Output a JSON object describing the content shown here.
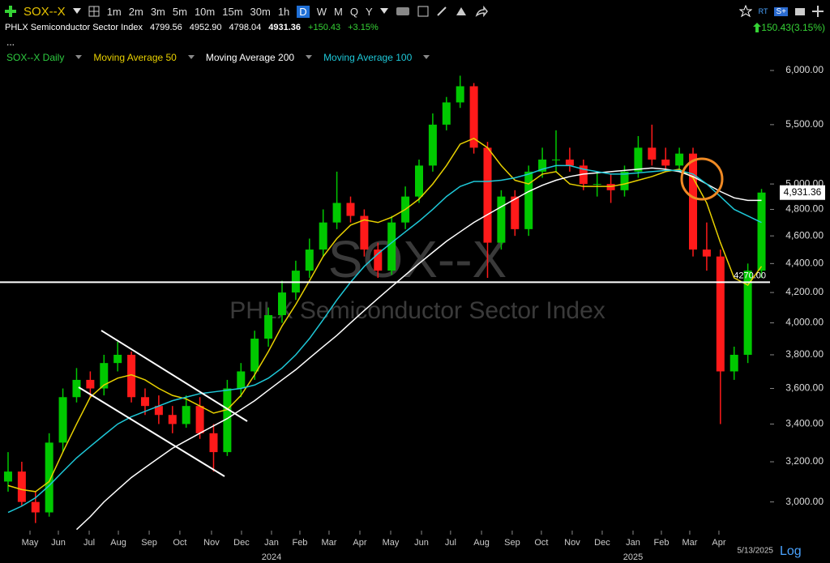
{
  "toolbar": {
    "symbol": "SOX--X",
    "timeframes": [
      "1m",
      "2m",
      "3m",
      "5m",
      "10m",
      "15m",
      "30m",
      "1h",
      "D",
      "W",
      "M",
      "Q",
      "Y"
    ],
    "active": "D",
    "rt": "RT",
    "sp": "S+"
  },
  "quote": {
    "name": "PHLX Semiconductor Sector Index",
    "open": "4799.56",
    "high": "4952.90",
    "low": "4798.04",
    "last": "4931.36",
    "change": "+150.43",
    "change_pct": "+3.15%",
    "change_summary": "150.43(3.15%)",
    "more": "..."
  },
  "chart_data": {
    "type": "candlestick",
    "title": "SOX--X",
    "subtitle": "PHLX Semiconductor Sector Index",
    "price_series_name": "SOX--X Daily",
    "up_color": "#00c800",
    "down_color": "#ff1a1a",
    "categories": [
      null,
      null,
      null,
      null,
      null,
      null,
      null,
      null,
      null,
      null,
      null,
      null,
      null,
      null,
      null,
      null,
      null,
      null,
      null,
      null,
      null,
      null,
      null,
      null,
      null,
      null,
      null,
      null,
      null,
      null,
      null,
      null,
      null,
      null,
      null,
      null,
      null,
      null,
      null,
      null,
      null,
      null,
      null,
      null,
      null,
      null,
      null,
      null,
      null,
      null,
      null,
      null,
      null,
      null,
      null,
      null
    ],
    "open": [
      3100,
      3150,
      3000,
      2950,
      3300,
      3550,
      3650,
      3600,
      3750,
      3800,
      3550,
      3500,
      3450,
      3400,
      3500,
      3350,
      3250,
      3600,
      3700,
      3900,
      4050,
      4200,
      4350,
      4500,
      4700,
      4850,
      4750,
      4500,
      4350,
      4700,
      4900,
      5150,
      5500,
      5700,
      5850,
      5300,
      4550,
      4900,
      4650,
      5100,
      5200,
      5200,
      5150,
      5000,
      5000,
      4950,
      5100,
      5300,
      5200,
      5150,
      5250,
      4500,
      4450,
      3700,
      3800,
      4350
    ],
    "high": [
      3250,
      3200,
      3050,
      3350,
      3600,
      3720,
      3700,
      3800,
      3880,
      3820,
      3600,
      3560,
      3500,
      3560,
      3550,
      3400,
      3650,
      3750,
      3950,
      4100,
      4280,
      4420,
      4580,
      4800,
      5100,
      4900,
      4800,
      4550,
      4750,
      4980,
      5200,
      5600,
      5750,
      5950,
      5880,
      5350,
      4950,
      4950,
      5150,
      5300,
      5450,
      5300,
      5200,
      5100,
      5080,
      5150,
      5400,
      5500,
      5300,
      5300,
      5300,
      4700,
      4500,
      3850,
      4400,
      4960
    ],
    "low": [
      3050,
      2980,
      2900,
      2930,
      3250,
      3520,
      3550,
      3560,
      3700,
      3520,
      3450,
      3400,
      3350,
      3380,
      3320,
      3150,
      3230,
      3550,
      3650,
      3850,
      4000,
      4150,
      4300,
      4450,
      4650,
      4700,
      4450,
      4300,
      4320,
      4650,
      4850,
      5100,
      5450,
      5650,
      5250,
      4300,
      4500,
      4600,
      4600,
      5050,
      5100,
      5100,
      4950,
      4900,
      4850,
      4900,
      5050,
      5150,
      5100,
      5100,
      4450,
      4350,
      3400,
      3650,
      3750,
      4300
    ],
    "close": [
      3150,
      3000,
      2950,
      3300,
      3550,
      3650,
      3600,
      3750,
      3800,
      3550,
      3500,
      3450,
      3400,
      3500,
      3350,
      3250,
      3600,
      3700,
      3900,
      4050,
      4200,
      4350,
      4500,
      4700,
      4850,
      4750,
      4500,
      4350,
      4700,
      4900,
      5150,
      5500,
      5700,
      5850,
      5300,
      4550,
      4900,
      4650,
      5100,
      5200,
      5200,
      5150,
      5000,
      5000,
      4950,
      5100,
      5300,
      5200,
      5150,
      5250,
      4500,
      4450,
      3700,
      3800,
      4350,
      4931.36
    ],
    "series": [
      {
        "name": "Moving Average 50",
        "color": "#e8d000",
        "values": [
          3080,
          3060,
          3050,
          3100,
          3250,
          3400,
          3550,
          3620,
          3660,
          3680,
          3650,
          3600,
          3560,
          3540,
          3500,
          3460,
          3480,
          3560,
          3680,
          3820,
          3980,
          4120,
          4280,
          4450,
          4580,
          4680,
          4720,
          4700,
          4740,
          4800,
          4880,
          5000,
          5150,
          5330,
          5380,
          5300,
          5150,
          5030,
          5000,
          5080,
          5100,
          5000,
          4980,
          4980,
          4980,
          5000,
          5030,
          5060,
          5100,
          5120,
          5050,
          4850,
          4550,
          4300,
          4250,
          4380
        ]
      },
      {
        "name": "Moving Average 200",
        "color": "#ffffff",
        "values": [
          null,
          null,
          null,
          null,
          null,
          2870,
          2930,
          3000,
          3060,
          3120,
          3170,
          3220,
          3270,
          3310,
          3350,
          3390,
          3430,
          3480,
          3530,
          3590,
          3650,
          3710,
          3780,
          3850,
          3920,
          4000,
          4080,
          4160,
          4240,
          4320,
          4400,
          4480,
          4560,
          4630,
          4700,
          4760,
          4820,
          4880,
          4940,
          4990,
          5030,
          5060,
          5080,
          5090,
          5100,
          5110,
          5120,
          5130,
          5120,
          5100,
          5060,
          5000,
          4940,
          4890,
          4870,
          4870
        ]
      },
      {
        "name": "Moving Average 100",
        "color": "#1ec8d8",
        "values": [
          2950,
          2980,
          3020,
          3080,
          3150,
          3220,
          3280,
          3340,
          3400,
          3440,
          3470,
          3500,
          3530,
          3550,
          3570,
          3580,
          3590,
          3600,
          3620,
          3660,
          3720,
          3800,
          3900,
          4020,
          4150,
          4270,
          4380,
          4470,
          4550,
          4630,
          4710,
          4800,
          4900,
          4980,
          5020,
          5020,
          5030,
          5050,
          5080,
          5120,
          5150,
          5150,
          5120,
          5100,
          5080,
          5080,
          5090,
          5100,
          5110,
          5110,
          5080,
          5000,
          4900,
          4800,
          4750,
          4700
        ]
      }
    ],
    "log_scale": true,
    "ylim": [
      2865,
      6055
    ],
    "yticks": [
      {
        "value": 3000,
        "label": "3,000.00"
      },
      {
        "value": 3200,
        "label": "3,200.00"
      },
      {
        "value": 3400,
        "label": "3,400.00"
      },
      {
        "value": 3600,
        "label": "3,600.00"
      },
      {
        "value": 3800,
        "label": "3,800.00"
      },
      {
        "value": 4000,
        "label": "4,000.00"
      },
      {
        "value": 4200,
        "label": "4,200.00"
      },
      {
        "value": 4400,
        "label": "4,400.00"
      },
      {
        "value": 4600,
        "label": "4,600.00"
      },
      {
        "value": 4800,
        "label": "4,800.00"
      },
      {
        "value": 5000,
        "label": "5,000.00"
      },
      {
        "value": 5500,
        "label": "5,500.00"
      },
      {
        "value": 6000,
        "label": "6,000.00"
      }
    ],
    "xlim": [
      -0.59,
      55.62
    ],
    "xticks": [
      {
        "value": 1.6,
        "label": "May"
      },
      {
        "value": 3.67,
        "label": "Jun"
      },
      {
        "value": 5.92,
        "label": "Jul"
      },
      {
        "value": 8.05,
        "label": "Aug"
      },
      {
        "value": 10.3,
        "label": "Sep"
      },
      {
        "value": 12.54,
        "label": "Oct"
      },
      {
        "value": 14.85,
        "label": "Nov"
      },
      {
        "value": 17.04,
        "label": "Dec"
      },
      {
        "value": 19.23,
        "label": "Jan"
      },
      {
        "value": 21.3,
        "label": "Feb"
      },
      {
        "value": 23.43,
        "label": "Mar"
      },
      {
        "value": 25.68,
        "label": "Apr"
      },
      {
        "value": 27.93,
        "label": "May"
      },
      {
        "value": 30.18,
        "label": "Jun"
      },
      {
        "value": 32.3,
        "label": "Jul"
      },
      {
        "value": 34.56,
        "label": "Aug"
      },
      {
        "value": 36.8,
        "label": "Sep"
      },
      {
        "value": 38.93,
        "label": "Oct"
      },
      {
        "value": 41.18,
        "label": "Nov"
      },
      {
        "value": 43.37,
        "label": "Dec"
      },
      {
        "value": 45.62,
        "label": "Jan"
      },
      {
        "value": 47.69,
        "label": "Feb"
      },
      {
        "value": 49.76,
        "label": "Mar"
      },
      {
        "value": 51.89,
        "label": "Apr"
      }
    ],
    "year_labels": [
      {
        "value": 19.23,
        "label": "2024"
      },
      {
        "value": 45.62,
        "label": "2025"
      }
    ],
    "horizontal_line": {
      "value": 4270,
      "label": "4270.00"
    },
    "last_price_label": "4,931.36",
    "date_label": "5/13/2025",
    "scale_button": "Log"
  }
}
